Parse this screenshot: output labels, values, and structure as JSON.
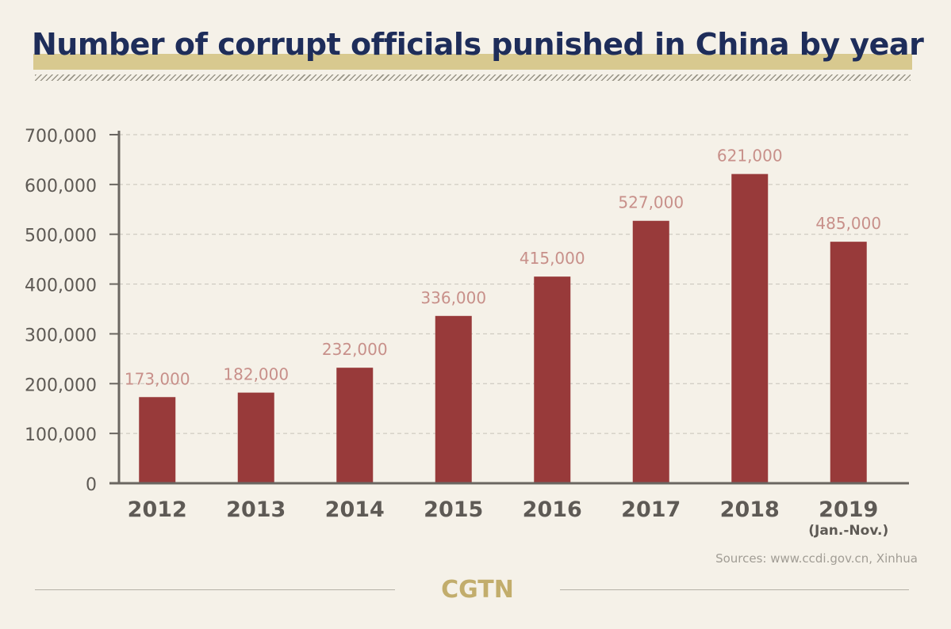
{
  "header": {
    "title": "Number of corrupt officials punished in China by year"
  },
  "chart_data": {
    "type": "bar",
    "title": "Number of corrupt officials punished in China by year",
    "categories": [
      "2012",
      "2013",
      "2014",
      "2015",
      "2016",
      "2017",
      "2018",
      "2019"
    ],
    "category_sublabels": [
      "",
      "",
      "",
      "",
      "",
      "",
      "",
      "(Jan.-Nov.)"
    ],
    "values": [
      173000,
      182000,
      232000,
      336000,
      415000,
      527000,
      621000,
      485000
    ],
    "value_labels": [
      "173,000",
      "182,000",
      "232,000",
      "336,000",
      "415,000",
      "527,000",
      "621,000",
      "485,000"
    ],
    "y_ticks": [
      0,
      100000,
      200000,
      300000,
      400000,
      500000,
      600000,
      700000
    ],
    "y_tick_labels": [
      "0",
      "100,000",
      "200,000",
      "300,000",
      "400,000",
      "500,000",
      "600,000",
      "700,000"
    ],
    "ylim": [
      0,
      700000
    ],
    "xlabel": "",
    "ylabel": "",
    "grid": true,
    "legend": "none",
    "colors": {
      "bar": "#983a3a",
      "value_label": "#c8908a",
      "axis": "#6a6661",
      "tick_label": "#5e5a55",
      "grid": "#c6c2b8"
    }
  },
  "footer": {
    "source": "Sources: www.ccdi.gov.cn, Xinhua",
    "logo": "CGTN"
  }
}
